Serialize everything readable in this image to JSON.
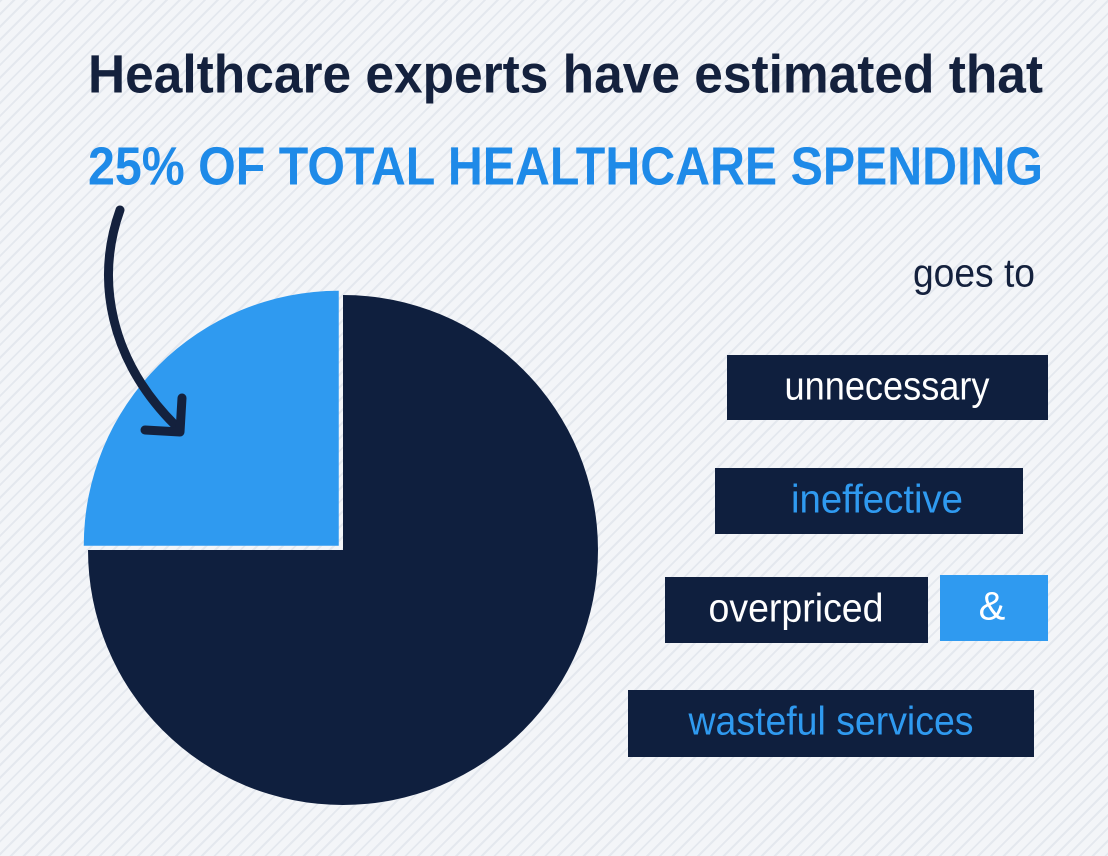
{
  "chart_data": {
    "type": "pie",
    "title": "Healthcare experts have estimated that",
    "subtitle": "25% OF TOTAL HEALTHCARE SPENDING",
    "values": [
      25,
      75
    ],
    "colors": [
      "#2f9af0",
      "#0f1f3e"
    ],
    "annotations": [
      "goes to",
      "unnecessary",
      "ineffective",
      "overpriced",
      "&",
      "wasteful services"
    ]
  }
}
